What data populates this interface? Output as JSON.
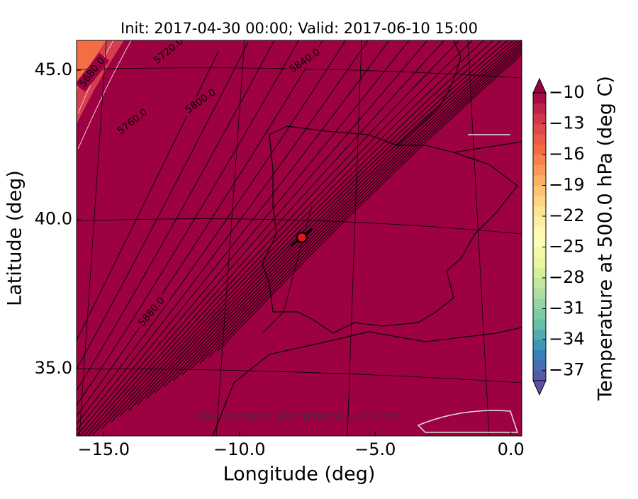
{
  "chart_data": {
    "type": "map",
    "title": "Init: 2017-04-30 00:00; Valid: 2017-06-10 15:00",
    "x_label": "Longitude (deg)",
    "y_label": "Latitude (deg)",
    "xlim": [
      -16.0,
      0.4
    ],
    "ylim": [
      32.75,
      46.0
    ],
    "xticks": [
      {
        "value": -15,
        "label": "−15.0"
      },
      {
        "value": -10,
        "label": "−10.0"
      },
      {
        "value": -5,
        "label": "−5.0"
      },
      {
        "value": 0,
        "label": "0.0"
      }
    ],
    "yticks": [
      {
        "value": 35,
        "label": "35.0"
      },
      {
        "value": 40,
        "label": "40.0"
      },
      {
        "value": 45,
        "label": "45.0"
      }
    ],
    "field_color": "#9e0142",
    "contour_labels": [
      "5680.0",
      "5720.0",
      "5760.0",
      "5800.0",
      "5840.0",
      "5880.0"
    ],
    "note": "Grey contours: precipitation > 0.5 mm",
    "points": [
      {
        "x": -7.7,
        "y": 39.4,
        "color": "#e8141b"
      }
    ],
    "colorbar": {
      "label": "Temperature at 500.0 hPa (deg C)",
      "lim": [
        -38,
        -10
      ],
      "ticks": [
        {
          "value": -10,
          "label": "−10"
        },
        {
          "value": -13,
          "label": "−13"
        },
        {
          "value": -16,
          "label": "−16"
        },
        {
          "value": -19,
          "label": "−19"
        },
        {
          "value": -22,
          "label": "−22"
        },
        {
          "value": -25,
          "label": "−25"
        },
        {
          "value": -28,
          "label": "−28"
        },
        {
          "value": -31,
          "label": "−31"
        },
        {
          "value": -34,
          "label": "−34"
        },
        {
          "value": -37,
          "label": "−37"
        }
      ],
      "colors": [
        "#5e4fa2",
        "#3288bd",
        "#66c2a5",
        "#abdda4",
        "#e6f598",
        "#ffffbf",
        "#fee08b",
        "#fdae61",
        "#f46d43",
        "#d53e4f",
        "#9e0142"
      ]
    }
  }
}
